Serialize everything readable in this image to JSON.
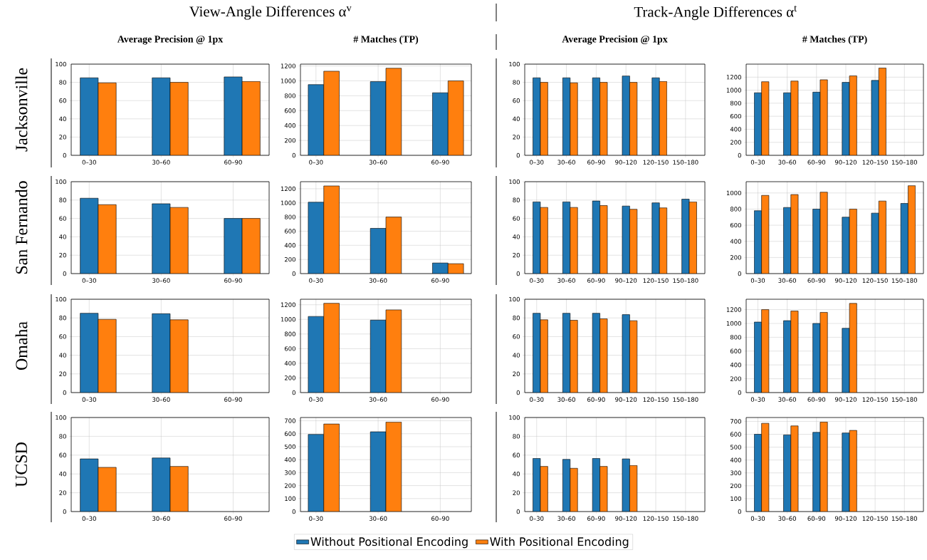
{
  "chart_data": [
    {
      "type": "bar",
      "title": "Average Precision @ 1px",
      "ylabel": "Jacksonville",
      "annotations": [
        "View-Angle Differences α$^{v}$"
      ],
      "categories": [
        "0–30",
        "30–60",
        "60–90"
      ],
      "ylim": [
        0,
        100
      ],
      "yticks": [
        0,
        20,
        40,
        60,
        80,
        100
      ],
      "grid": true,
      "series": [
        {
          "color": "#1f77b4",
          "values": [
            85,
            85,
            86
          ]
        },
        {
          "color": "#ff7f0e",
          "values": [
            79.5,
            80,
            81
          ]
        }
      ]
    },
    {
      "type": "bar",
      "title": "# Matches (TP)",
      "categories": [
        "0–30",
        "30–60",
        "60–90"
      ],
      "ylim": [
        0,
        1225
      ],
      "yticks": [
        0,
        200,
        400,
        600,
        800,
        1000,
        1200
      ],
      "grid": true,
      "series": [
        {
          "color": "#1f77b4",
          "values": [
            950,
            990,
            840
          ]
        },
        {
          "color": "#ff7f0e",
          "values": [
            1130,
            1170,
            1000
          ]
        }
      ]
    },
    {
      "type": "bar",
      "title": "Average Precision @ 1px",
      "annotations": [
        "Track-Angle Differences α$^{t}$"
      ],
      "categories": [
        "0–30",
        "30–60",
        "60–90",
        "90–120",
        "120–150",
        "150–180"
      ],
      "ylim": [
        0,
        100
      ],
      "yticks": [
        0,
        20,
        40,
        60,
        80,
        100
      ],
      "grid": true,
      "series": [
        {
          "color": "#1f77b4",
          "values": [
            85,
            85,
            85,
            87,
            85,
            null
          ]
        },
        {
          "color": "#ff7f0e",
          "values": [
            80,
            79.5,
            80,
            80,
            81,
            null
          ]
        }
      ]
    },
    {
      "type": "bar",
      "title": "# Matches (TP)",
      "categories": [
        "0–30",
        "30–60",
        "60–90",
        "90–120",
        "120–150",
        "150–180"
      ],
      "ylim": [
        0,
        1400
      ],
      "yticks": [
        0,
        200,
        400,
        600,
        800,
        1000,
        1200
      ],
      "grid": true,
      "series": [
        {
          "color": "#1f77b4",
          "values": [
            960,
            960,
            970,
            1120,
            1150,
            null
          ]
        },
        {
          "color": "#ff7f0e",
          "values": [
            1130,
            1140,
            1160,
            1220,
            1340,
            null
          ]
        }
      ]
    },
    {
      "type": "bar",
      "ylabel": "San Fernando",
      "categories": [
        "0–30",
        "30–60",
        "60–90"
      ],
      "ylim": [
        0,
        100
      ],
      "yticks": [
        0,
        20,
        40,
        60,
        80,
        100
      ],
      "grid": true,
      "series": [
        {
          "color": "#1f77b4",
          "values": [
            82,
            76,
            60
          ]
        },
        {
          "color": "#ff7f0e",
          "values": [
            75,
            72,
            60
          ]
        }
      ]
    },
    {
      "type": "bar",
      "categories": [
        "0–30",
        "30–60",
        "60–90"
      ],
      "ylim": [
        0,
        1300
      ],
      "yticks": [
        0,
        200,
        400,
        600,
        800,
        1000,
        1200
      ],
      "grid": true,
      "series": [
        {
          "color": "#1f77b4",
          "values": [
            1010,
            640,
            150
          ]
        },
        {
          "color": "#ff7f0e",
          "values": [
            1240,
            800,
            140
          ]
        }
      ]
    },
    {
      "type": "bar",
      "categories": [
        "0–30",
        "30–60",
        "60–90",
        "90–120",
        "120–150",
        "150–180"
      ],
      "ylim": [
        0,
        100
      ],
      "yticks": [
        0,
        20,
        40,
        60,
        80,
        100
      ],
      "grid": true,
      "series": [
        {
          "color": "#1f77b4",
          "values": [
            78,
            78,
            79,
            73.5,
            77,
            81
          ]
        },
        {
          "color": "#ff7f0e",
          "values": [
            72,
            72,
            74,
            70,
            71.5,
            78
          ]
        }
      ]
    },
    {
      "type": "bar",
      "categories": [
        "0–30",
        "30–60",
        "60–90",
        "90–120",
        "120–150",
        "150–180"
      ],
      "ylim": [
        0,
        1140
      ],
      "yticks": [
        0,
        200,
        400,
        600,
        800,
        1000
      ],
      "grid": true,
      "series": [
        {
          "color": "#1f77b4",
          "values": [
            780,
            820,
            800,
            700,
            750,
            870
          ]
        },
        {
          "color": "#ff7f0e",
          "values": [
            970,
            980,
            1010,
            800,
            900,
            1090
          ]
        }
      ]
    },
    {
      "type": "bar",
      "ylabel": "Omaha",
      "categories": [
        "0–30",
        "30–60",
        "60–90"
      ],
      "ylim": [
        0,
        100
      ],
      "yticks": [
        0,
        20,
        40,
        60,
        80,
        100
      ],
      "grid": true,
      "series": [
        {
          "color": "#1f77b4",
          "values": [
            85,
            84.5,
            null
          ]
        },
        {
          "color": "#ff7f0e",
          "values": [
            78.5,
            78,
            null
          ]
        }
      ]
    },
    {
      "type": "bar",
      "categories": [
        "0–30",
        "30–60",
        "60–90"
      ],
      "ylim": [
        0,
        1275
      ],
      "yticks": [
        0,
        200,
        400,
        600,
        800,
        1000,
        1200
      ],
      "grid": true,
      "series": [
        {
          "color": "#1f77b4",
          "values": [
            1040,
            990,
            null
          ]
        },
        {
          "color": "#ff7f0e",
          "values": [
            1220,
            1130,
            null
          ]
        }
      ]
    },
    {
      "type": "bar",
      "categories": [
        "0–30",
        "30–60",
        "60–90",
        "90–120",
        "120–150",
        "150–180"
      ],
      "ylim": [
        0,
        100
      ],
      "yticks": [
        0,
        20,
        40,
        60,
        80,
        100
      ],
      "grid": true,
      "series": [
        {
          "color": "#1f77b4",
          "values": [
            85,
            85,
            85,
            83.5,
            null,
            null
          ]
        },
        {
          "color": "#ff7f0e",
          "values": [
            78,
            77.5,
            79,
            77,
            null,
            null
          ]
        }
      ]
    },
    {
      "type": "bar",
      "categories": [
        "0–30",
        "30–60",
        "60–90",
        "90–120",
        "120–150",
        "150–180"
      ],
      "ylim": [
        0,
        1350
      ],
      "yticks": [
        0,
        200,
        400,
        600,
        800,
        1000,
        1200
      ],
      "grid": true,
      "series": [
        {
          "color": "#1f77b4",
          "values": [
            1020,
            1040,
            1000,
            930,
            null,
            null
          ]
        },
        {
          "color": "#ff7f0e",
          "values": [
            1200,
            1180,
            1160,
            1290,
            null,
            null
          ]
        }
      ]
    },
    {
      "type": "bar",
      "ylabel": "UCSD",
      "categories": [
        "0–30",
        "30–60",
        "60–90"
      ],
      "ylim": [
        0,
        100
      ],
      "yticks": [
        0,
        20,
        40,
        60,
        80,
        100
      ],
      "grid": true,
      "series": [
        {
          "color": "#1f77b4",
          "values": [
            56,
            57,
            null
          ]
        },
        {
          "color": "#ff7f0e",
          "values": [
            47,
            48,
            null
          ]
        }
      ]
    },
    {
      "type": "bar",
      "categories": [
        "0–30",
        "30–60",
        "60–90"
      ],
      "ylim": [
        0,
        725
      ],
      "yticks": [
        0,
        100,
        200,
        300,
        400,
        500,
        600,
        700
      ],
      "grid": true,
      "legend": "bottom",
      "series": [
        {
          "name": "Without Positional Encoding",
          "color": "#1f77b4",
          "values": [
            595,
            615,
            null
          ]
        },
        {
          "name": "With Positional Encoding",
          "color": "#ff7f0e",
          "values": [
            675,
            690,
            null
          ]
        }
      ]
    },
    {
      "type": "bar",
      "categories": [
        "0–30",
        "30–60",
        "60–90",
        "90–120",
        "120–150",
        "150–180"
      ],
      "ylim": [
        0,
        100
      ],
      "yticks": [
        0,
        20,
        40,
        60,
        80,
        100
      ],
      "grid": true,
      "series": [
        {
          "color": "#1f77b4",
          "values": [
            56.5,
            55.5,
            56.5,
            56,
            null,
            null
          ]
        },
        {
          "color": "#ff7f0e",
          "values": [
            48,
            46,
            48,
            49,
            null,
            null
          ]
        }
      ]
    },
    {
      "type": "bar",
      "categories": [
        "0–30",
        "30–60",
        "60–90",
        "90–120",
        "120–150",
        "150–180"
      ],
      "ylim": [
        0,
        730
      ],
      "yticks": [
        0,
        100,
        200,
        300,
        400,
        500,
        600,
        700
      ],
      "grid": true,
      "series": [
        {
          "color": "#1f77b4",
          "values": [
            600,
            595,
            615,
            610,
            null,
            null
          ]
        },
        {
          "color": "#ff7f0e",
          "values": [
            685,
            665,
            695,
            630,
            null,
            null
          ]
        }
      ]
    }
  ]
}
